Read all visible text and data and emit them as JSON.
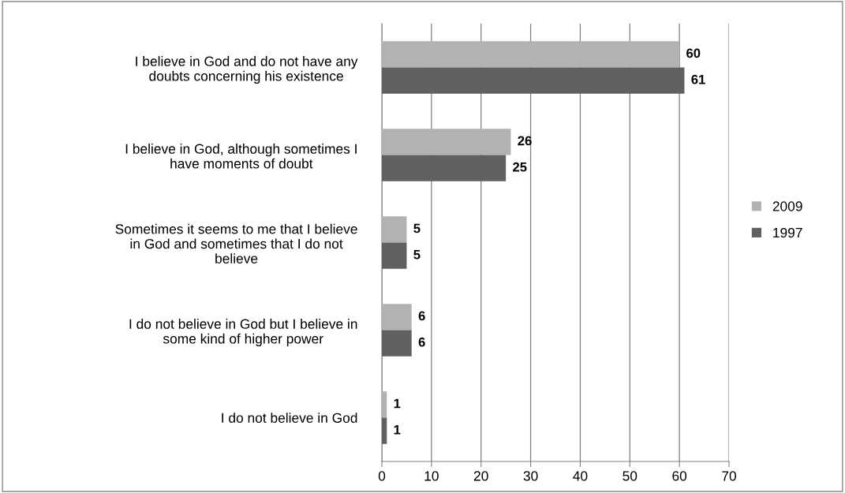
{
  "chart_data": {
    "type": "bar",
    "orientation": "horizontal",
    "categories": [
      "I believe in God and do not have any\ndoubts concerning his existence",
      "I believe in God, although sometimes I\nhave moments of doubt",
      "Sometimes it seems to me that I believe\nin God and sometimes that I do not\nbelieve",
      "I do not believe in God but I believe in\nsome kind of higher power",
      "I do not believe in God"
    ],
    "series": [
      {
        "name": "2009",
        "color": "#b2b2b2",
        "values": [
          60,
          26,
          5,
          6,
          1
        ]
      },
      {
        "name": "1997",
        "color": "#606060",
        "values": [
          61,
          25,
          5,
          6,
          1
        ]
      }
    ],
    "xlim": [
      0,
      70
    ],
    "xticks": [
      0,
      10,
      20,
      30,
      40,
      50,
      60,
      70
    ],
    "grid": "x",
    "legend": "right",
    "data_labels": true
  }
}
